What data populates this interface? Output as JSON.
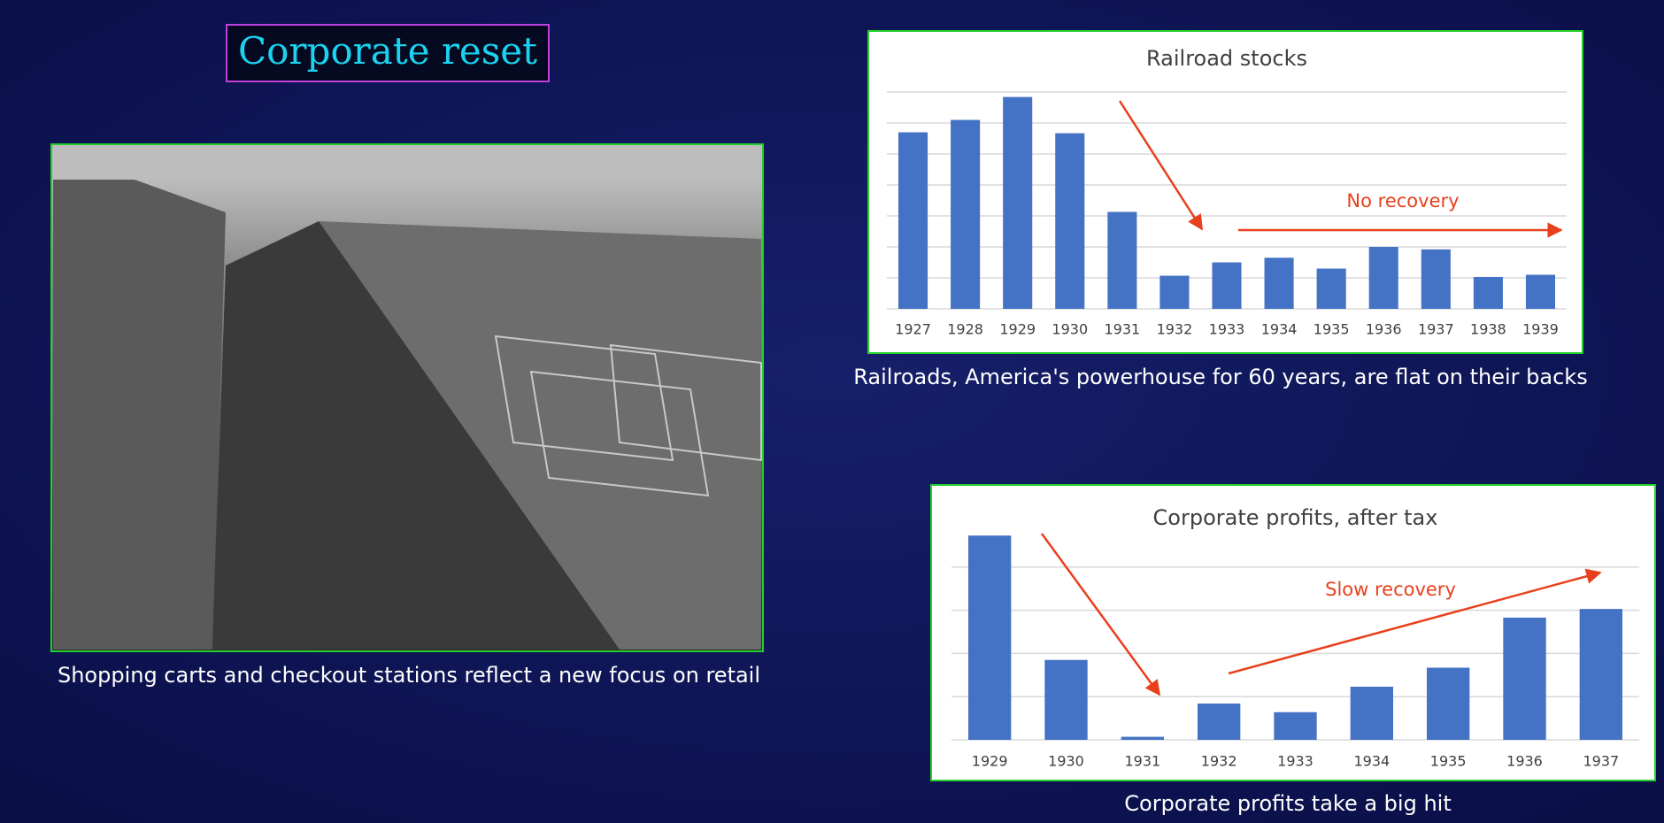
{
  "title": "Corporate reset",
  "photo_caption": "Shopping carts and checkout stations reflect a new focus on retail",
  "chart_data": [
    {
      "type": "bar",
      "title": "Railroad stocks",
      "categories": [
        "1927",
        "1928",
        "1929",
        "1930",
        "1931",
        "1932",
        "1933",
        "1934",
        "1935",
        "1936",
        "1937",
        "1938",
        "1939"
      ],
      "values": [
        5.7,
        6.1,
        6.84,
        5.67,
        3.13,
        1.07,
        1.5,
        1.65,
        1.3,
        2.0,
        1.92,
        1.03,
        1.1
      ],
      "color": "#4472c4",
      "ylim": [
        0,
        7
      ],
      "yticks": [
        0,
        1,
        2,
        3,
        4,
        5,
        6,
        7
      ],
      "grid": true,
      "annotation": "No recovery",
      "caption": "Railroads, America's powerhouse for 60 years, are flat on their backs"
    },
    {
      "type": "bar",
      "title": "Corporate profits, after tax",
      "categories": [
        "1929",
        "1930",
        "1931",
        "1932",
        "1933",
        "1934",
        "1935",
        "1936",
        "1937"
      ],
      "values": [
        4.73,
        1.85,
        0.07,
        0.84,
        0.64,
        1.23,
        1.67,
        2.83,
        3.03
      ],
      "color": "#4472c4",
      "ylim": [
        0,
        5
      ],
      "yticks": [
        0,
        1,
        2,
        3,
        4
      ],
      "grid": true,
      "annotation": "Slow recovery",
      "caption": "Corporate profits take a big hit"
    }
  ]
}
